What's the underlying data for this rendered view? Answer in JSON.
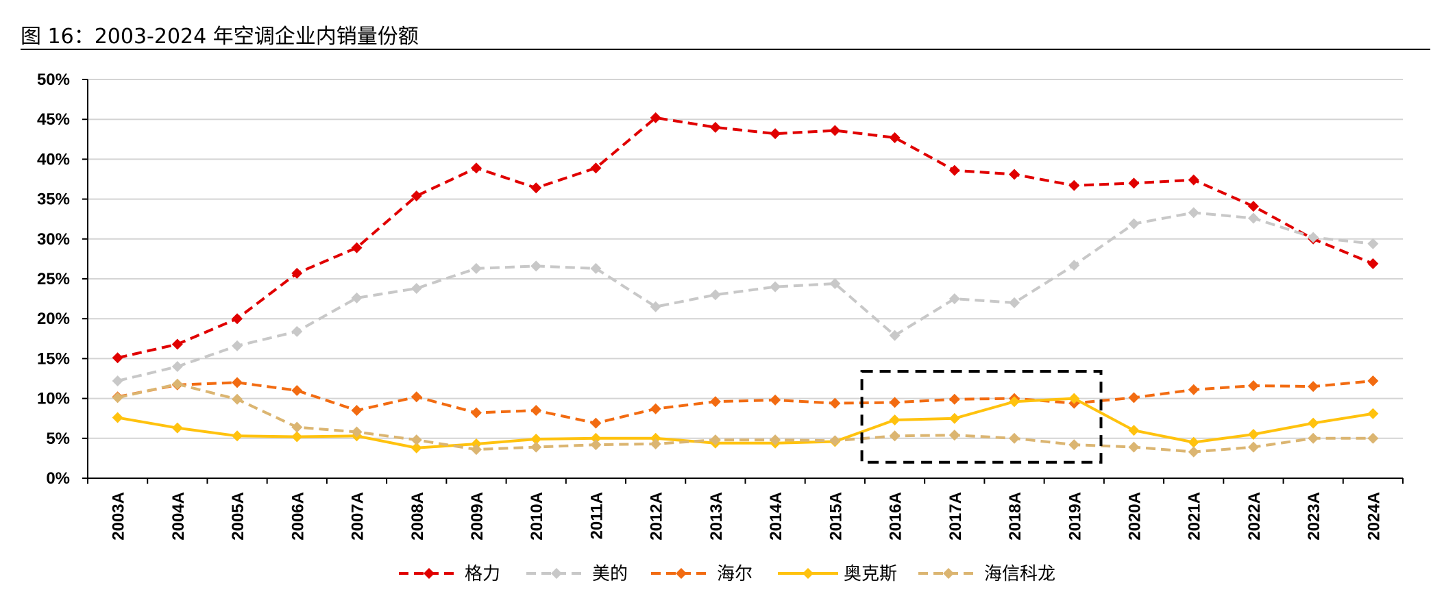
{
  "caption": "图 16：2003-2024 年空调企业内销量份额",
  "chart_data": {
    "type": "line",
    "title": "",
    "xlabel": "",
    "ylabel": "",
    "x": [
      "2003A",
      "2004A",
      "2005A",
      "2006A",
      "2007A",
      "2008A",
      "2009A",
      "2010A",
      "2011A",
      "2012A",
      "2013A",
      "2014A",
      "2015A",
      "2016A",
      "2017A",
      "2018A",
      "2019A",
      "2020A",
      "2021A",
      "2022A",
      "2023A",
      "2024A"
    ],
    "ylim": [
      0,
      50
    ],
    "yticks": [
      "0%",
      "5%",
      "10%",
      "15%",
      "20%",
      "25%",
      "30%",
      "35%",
      "40%",
      "45%",
      "50%"
    ],
    "grid": true,
    "legend_position": "bottom",
    "series": [
      {
        "name": "格力",
        "color": "#e00000",
        "dash": true,
        "width": 4,
        "values": [
          15.1,
          16.8,
          20.0,
          25.7,
          28.9,
          35.4,
          38.9,
          36.4,
          38.9,
          45.2,
          44.0,
          43.2,
          43.6,
          42.7,
          38.6,
          38.1,
          36.7,
          37.0,
          37.4,
          34.1,
          30.0,
          26.9
        ]
      },
      {
        "name": "美的",
        "color": "#c8c8c8",
        "dash": true,
        "width": 4,
        "values": [
          12.2,
          14.0,
          16.6,
          18.4,
          22.6,
          23.8,
          26.3,
          26.6,
          26.3,
          21.5,
          23.0,
          24.0,
          24.4,
          17.9,
          22.5,
          22.0,
          26.7,
          31.9,
          33.3,
          32.6,
          30.2,
          29.4
        ]
      },
      {
        "name": "海尔",
        "color": "#f26b11",
        "dash": true,
        "width": 4,
        "values": [
          10.2,
          11.7,
          12.0,
          11.0,
          8.5,
          10.2,
          8.2,
          8.5,
          6.9,
          8.7,
          9.6,
          9.8,
          9.4,
          9.5,
          9.9,
          10.0,
          9.4,
          10.1,
          11.1,
          11.6,
          11.5,
          12.2
        ]
      },
      {
        "name": "奥克斯",
        "color": "#ffc20e",
        "dash": false,
        "width": 4,
        "values": [
          7.6,
          6.3,
          5.3,
          5.2,
          5.3,
          3.8,
          4.3,
          4.9,
          5.0,
          5.0,
          4.4,
          4.4,
          4.6,
          7.3,
          7.5,
          9.6,
          10.0,
          6.0,
          4.5,
          5.5,
          6.9,
          8.1
        ]
      },
      {
        "name": "海信科龙",
        "color": "#dbb571",
        "dash": true,
        "width": 4,
        "values": [
          10.1,
          11.8,
          9.9,
          6.4,
          5.8,
          4.8,
          3.6,
          3.9,
          4.2,
          4.3,
          4.8,
          4.8,
          4.7,
          5.3,
          5.4,
          5.0,
          4.2,
          3.9,
          3.3,
          3.9,
          5.0,
          5.0
        ]
      }
    ],
    "annotations": [
      {
        "type": "dashed-box",
        "x_from": "2016A",
        "x_to": "2019A",
        "y_from": 2,
        "y_to": 13.4
      }
    ]
  }
}
